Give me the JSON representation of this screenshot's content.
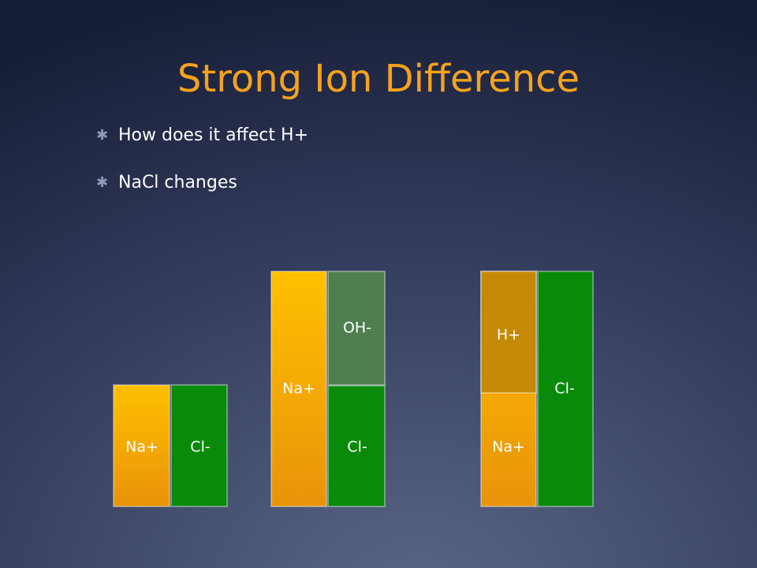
{
  "title": "Strong Ion Difference",
  "bullets": [
    "How does it affect H+",
    "NaCl changes"
  ],
  "diagrams": [
    {
      "blocks": [
        {
          "label": "Na+"
        },
        {
          "label": "Cl-"
        }
      ]
    },
    {
      "blocks": [
        {
          "label": "Na+"
        },
        {
          "label": "OH-"
        },
        {
          "label": "Cl-"
        }
      ]
    },
    {
      "blocks": [
        {
          "label": "H+"
        },
        {
          "label": "Na+"
        },
        {
          "label": "Cl-"
        }
      ]
    }
  ]
}
